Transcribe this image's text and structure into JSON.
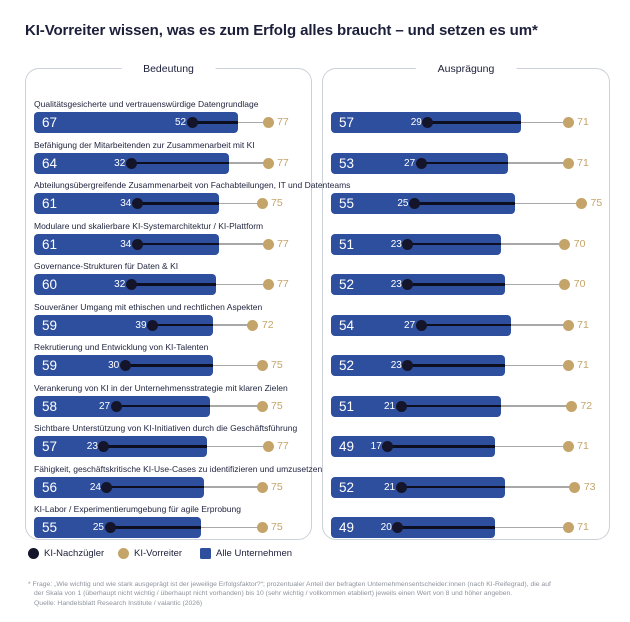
{
  "header": {
    "title": "KI-Vorreiter wissen, was es zum Erfolg alles braucht – und setzen es um*"
  },
  "colors": {
    "bar_blue": "#2e4f9e",
    "dot_dark_navy": "#14152b",
    "dot_gold": "#c4a469",
    "text_navy": "#1c1f3a",
    "footnote_gray": "#8e939c"
  },
  "legend": {
    "items": [
      {
        "label": "KI-Nachzügler",
        "marker": "dot",
        "color": "#14152b"
      },
      {
        "label": "KI-Vorreiter",
        "marker": "dot",
        "color": "#c4a469"
      },
      {
        "label": "Alle Unternehmen",
        "marker": "square",
        "color": "#2e4f9e"
      }
    ]
  },
  "footnote": {
    "lines": [
      "* Frage: „Wie wichtig und wie stark ausgeprägt ist der jeweilige Erfolgsfaktor?“; prozentualer Anteil der befragten Unternehmensentscheider:innen (nach KI-Reifegrad), die auf",
      "der Skala von 1 (überhaupt nicht wichtig / überhaupt nicht vorhanden) bis 10 (sehr wichtig / vollkommen etabliert) jeweils einen Wert von 8 und höher angeben.",
      "Quelle: Handelsblatt Research Institute / valantic (2026)"
    ]
  },
  "chart_data": {
    "type": "bar",
    "orientation": "horizontal",
    "title": "KI-Vorreiter wissen, was es zum Erfolg alles braucht – und setzen es um*",
    "xlim": [
      0,
      80
    ],
    "grid": false,
    "legend_position": "bottom",
    "categories": [
      "Qualitätsgesicherte und vertrauenswürdige Datengrundlage",
      "Befähigung der Mitarbeitenden zur Zusammenarbeit mit KI",
      "Abteilungsübergreifende Zusammenarbeit von Fachabteilungen, IT und Datenteams",
      "Modulare und skalierbare KI-Systemarchitektur / KI-Plattform",
      "Governance-Strukturen für Daten & KI",
      "Souveräner Umgang mit ethischen und rechtlichen Aspekten",
      "Rekrutierung und Entwicklung von KI-Talenten",
      "Verankerung von KI in der Unternehmensstrategie mit klaren Zielen",
      "Sichtbare Unterstützung von KI-Initiativen durch die Geschäftsführung",
      "Fähigkeit, geschäftskritische KI-Use-Cases zu identifizieren und umzusetzen",
      "KI-Labor / Experimentierumgebung für agile Erprobung"
    ],
    "panels": [
      {
        "label": "Bedeutung",
        "series": [
          {
            "name": "Alle Unternehmen",
            "style": "bar",
            "color": "#2e4f9e",
            "values": [
              67,
              64,
              61,
              61,
              60,
              59,
              59,
              58,
              57,
              56,
              55
            ]
          },
          {
            "name": "KI-Nachzügler",
            "style": "dot",
            "color": "#14152b",
            "values": [
              52,
              32,
              34,
              34,
              32,
              39,
              30,
              27,
              23,
              24,
              25
            ]
          },
          {
            "name": "KI-Vorreiter",
            "style": "dot",
            "color": "#c4a469",
            "values": [
              77,
              77,
              75,
              77,
              77,
              72,
              75,
              75,
              77,
              75,
              75
            ]
          }
        ]
      },
      {
        "label": "Ausprägung",
        "series": [
          {
            "name": "Alle Unternehmen",
            "style": "bar",
            "color": "#2e4f9e",
            "values": [
              57,
              53,
              55,
              51,
              52,
              54,
              52,
              51,
              49,
              52,
              49
            ]
          },
          {
            "name": "KI-Nachzügler",
            "style": "dot",
            "color": "#14152b",
            "values": [
              29,
              27,
              25,
              23,
              23,
              27,
              23,
              21,
              17,
              21,
              20
            ]
          },
          {
            "name": "KI-Vorreiter",
            "style": "dot",
            "color": "#c4a469",
            "values": [
              71,
              71,
              75,
              70,
              70,
              71,
              71,
              72,
              71,
              73,
              71
            ]
          }
        ]
      }
    ]
  }
}
